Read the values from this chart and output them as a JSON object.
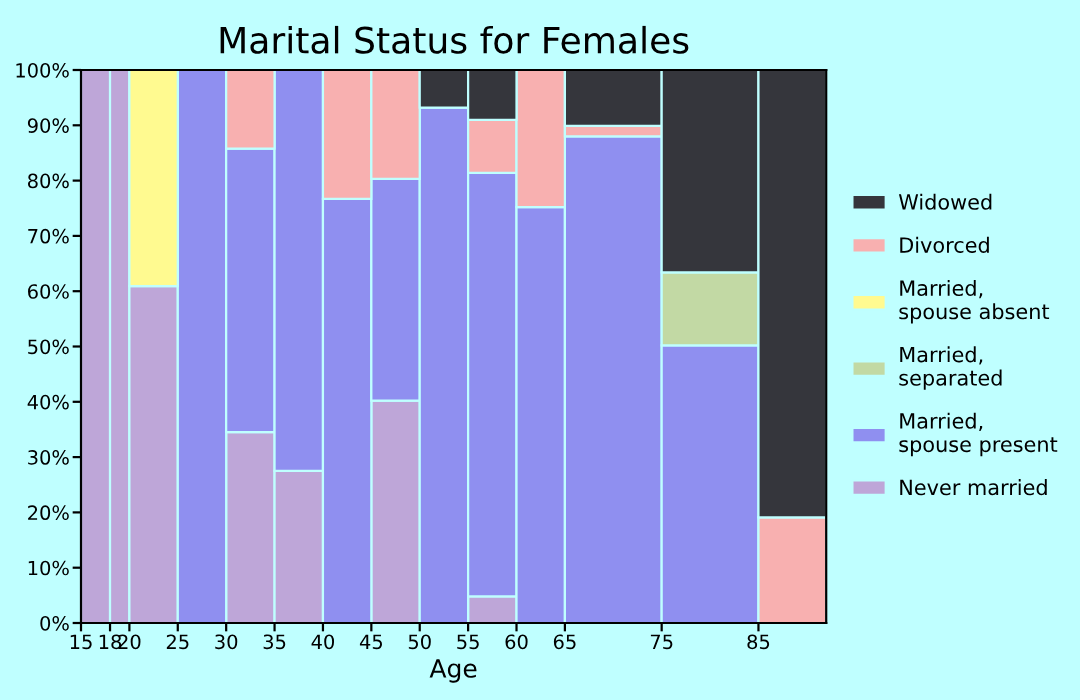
{
  "chart_data": {
    "type": "bar",
    "stacked": true,
    "title": "Marital Status for Females",
    "xlabel": "Age",
    "x": [
      16.5,
      19,
      22.5,
      27.5,
      32.5,
      37.5,
      42.5,
      47.5,
      52.5,
      57.5,
      62.5,
      70,
      80,
      88.5
    ],
    "xlim": [
      15,
      92
    ],
    "xticks": [
      15,
      18,
      20,
      25,
      30,
      35,
      40,
      45,
      50,
      55,
      60,
      65,
      75,
      85
    ],
    "ylim": [
      0,
      100
    ],
    "yticks": [
      {
        "value": 0,
        "label": "0%"
      },
      {
        "value": 10,
        "label": "10%"
      },
      {
        "value": 20,
        "label": "20%"
      },
      {
        "value": 30,
        "label": "30%"
      },
      {
        "value": 40,
        "label": "40%"
      },
      {
        "value": 50,
        "label": "50%"
      },
      {
        "value": 60,
        "label": "60%"
      },
      {
        "value": 70,
        "label": "70%"
      },
      {
        "value": 80,
        "label": "80%"
      },
      {
        "value": 90,
        "label": "90%"
      },
      {
        "value": 100,
        "label": "100%"
      }
    ],
    "grid": false,
    "legend": "right",
    "series": [
      {
        "name": "Never married",
        "color": "#bea6d8",
        "values": [
          100,
          100,
          60.9,
          null,
          34.5,
          27.5,
          null,
          40.2,
          null,
          4.8,
          null,
          null,
          null,
          null
        ]
      },
      {
        "name": "Married,\nspouse present",
        "color": "#8f8ff0",
        "values": [
          null,
          null,
          null,
          100,
          51.3,
          72.5,
          76.7,
          40.1,
          93.2,
          76.6,
          75.2,
          88.0,
          50.2,
          null
        ]
      },
      {
        "name": "Married,\nseparated",
        "color": "#c2d9a4",
        "values": [
          null,
          null,
          null,
          null,
          null,
          null,
          null,
          null,
          null,
          null,
          null,
          null,
          13.2,
          null
        ]
      },
      {
        "name": "Married,\nspouse absent",
        "color": "#fffa90",
        "values": [
          null,
          null,
          39.1,
          null,
          null,
          null,
          null,
          null,
          null,
          null,
          null,
          null,
          null,
          null
        ]
      },
      {
        "name": "Divorced",
        "color": "#f8b0b0",
        "values": [
          null,
          null,
          null,
          null,
          14.2,
          null,
          23.3,
          19.7,
          null,
          9.6,
          24.8,
          1.9,
          null,
          19.1
        ]
      },
      {
        "name": "Widowed",
        "color": "#35363c",
        "values": [
          null,
          null,
          null,
          null,
          null,
          null,
          null,
          null,
          6.8,
          9.0,
          null,
          10.1,
          36.6,
          80.9
        ]
      }
    ]
  }
}
